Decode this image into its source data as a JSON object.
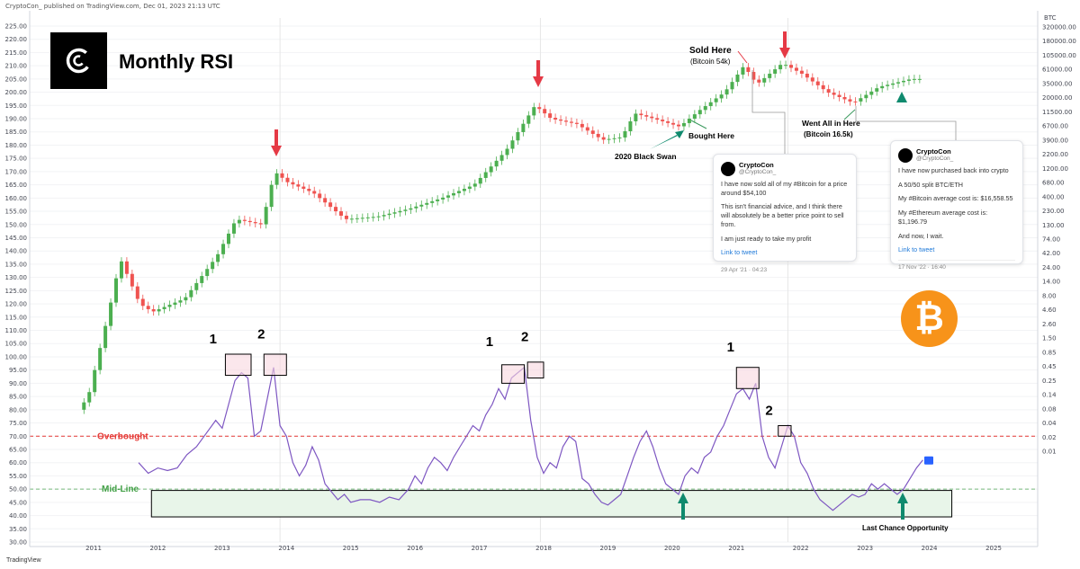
{
  "header": {
    "published": "CryptoCon_ published on TradingView.com, Dec 01, 2023 21:13 UTC"
  },
  "title": "Monthly RSI",
  "footer": {
    "brand": "TradingView"
  },
  "colors": {
    "up": "#26a69a",
    "up_fill": "#4caf50",
    "down": "#ef5350",
    "rsi": "#7e57c2",
    "overbought": "#e53935",
    "midline": "#43a047",
    "zone_fill": "#e8f5e9",
    "box_fill": "#f8d7e0",
    "coin": "#f7931a",
    "arrow_red": "#e53945",
    "arrow_teal": "#0f8a6e"
  },
  "chart_data": {
    "type": "line",
    "title": "Monthly RSI",
    "x_ticks": [
      "2011",
      "2012",
      "2013",
      "2014",
      "2015",
      "2016",
      "2017",
      "2018",
      "2019",
      "2020",
      "2021",
      "2022",
      "2023",
      "2024",
      "2025"
    ],
    "y_left_ticks": [
      "225.00",
      "220.00",
      "215.00",
      "210.00",
      "205.00",
      "200.00",
      "195.00",
      "190.00",
      "185.00",
      "180.00",
      "175.00",
      "170.00",
      "165.00",
      "160.00",
      "155.00",
      "150.00",
      "145.00",
      "140.00",
      "135.00",
      "130.00",
      "125.00",
      "120.00",
      "115.00",
      "110.00",
      "105.00",
      "100.00",
      "95.00",
      "90.00",
      "85.00",
      "80.00",
      "75.00",
      "70.00",
      "65.00",
      "60.00",
      "55.00",
      "50.00",
      "45.00",
      "40.00",
      "35.00",
      "30.00"
    ],
    "y_left_range": [
      30,
      225
    ],
    "y_right_label": "BTC",
    "y_right_ticks": [
      "320000.00",
      "180000.00",
      "105000.00",
      "61000.00",
      "35000.00",
      "20000.00",
      "11500.00",
      "6700.00",
      "3900.00",
      "2200.00",
      "1200.00",
      "680.00",
      "400.00",
      "230.00",
      "130.00",
      "74.00",
      "42.00",
      "24.00",
      "14.00",
      "8.00",
      "4.60",
      "2.60",
      "1.50",
      "0.85",
      "0.45",
      "0.25",
      "0.14",
      "0.08",
      "0.04",
      "0.02",
      "0.01"
    ],
    "levels": {
      "overbought": 70,
      "midline": 50,
      "overbought_label": "Overbought",
      "midline_label": "Mid-Line"
    },
    "rsi": {
      "name": "RSI",
      "x": [
        2011.7,
        2011.85,
        2012.0,
        2012.15,
        2012.3,
        2012.45,
        2012.6,
        2012.75,
        2012.9,
        2013.0,
        2013.1,
        2013.2,
        2013.3,
        2013.4,
        2013.5,
        2013.6,
        2013.7,
        2013.8,
        2013.9,
        2014.0,
        2014.1,
        2014.2,
        2014.3,
        2014.4,
        2014.5,
        2014.6,
        2014.7,
        2014.8,
        2014.9,
        2015.0,
        2015.15,
        2015.3,
        2015.45,
        2015.6,
        2015.75,
        2015.9,
        2016.0,
        2016.1,
        2016.2,
        2016.3,
        2016.4,
        2016.5,
        2016.6,
        2016.7,
        2016.8,
        2016.9,
        2017.0,
        2017.1,
        2017.2,
        2017.3,
        2017.4,
        2017.5,
        2017.6,
        2017.7,
        2017.8,
        2017.9,
        2018.0,
        2018.1,
        2018.2,
        2018.3,
        2018.4,
        2018.5,
        2018.6,
        2018.7,
        2018.8,
        2018.9,
        2019.0,
        2019.1,
        2019.2,
        2019.3,
        2019.4,
        2019.5,
        2019.6,
        2019.7,
        2019.8,
        2019.9,
        2020.0,
        2020.1,
        2020.2,
        2020.3,
        2020.4,
        2020.5,
        2020.6,
        2020.7,
        2020.8,
        2020.9,
        2021.0,
        2021.1,
        2021.2,
        2021.3,
        2021.4,
        2021.5,
        2021.6,
        2021.7,
        2021.8,
        2021.9,
        2022.0,
        2022.1,
        2022.2,
        2022.3,
        2022.4,
        2022.5,
        2022.6,
        2022.7,
        2022.8,
        2022.9,
        2023.0,
        2023.1,
        2023.2,
        2023.3,
        2023.4,
        2023.5,
        2023.6,
        2023.7,
        2023.8,
        2023.9
      ],
      "values": [
        60,
        56,
        58,
        57,
        58,
        63,
        66,
        71,
        76,
        73,
        82,
        91,
        94,
        92,
        70,
        72,
        84,
        96,
        74,
        70,
        60,
        55,
        59,
        66,
        61,
        52,
        49,
        46,
        48,
        45,
        46,
        46,
        45,
        47,
        46,
        50,
        55,
        52,
        58,
        62,
        60,
        57,
        62,
        66,
        70,
        74,
        72,
        78,
        82,
        88,
        84,
        92,
        94,
        96,
        76,
        62,
        56,
        60,
        58,
        66,
        70,
        68,
        54,
        52,
        48,
        45,
        44,
        46,
        48,
        55,
        62,
        68,
        72,
        66,
        58,
        52,
        50,
        48,
        55,
        58,
        56,
        62,
        64,
        70,
        74,
        80,
        86,
        88,
        84,
        90,
        70,
        62,
        58,
        66,
        74,
        70,
        60,
        56,
        50,
        46,
        44,
        42,
        44,
        46,
        48,
        47,
        48,
        52,
        50,
        52,
        50,
        48,
        50,
        54,
        58,
        61
      ]
    },
    "annotations": {
      "cycle_labels": [
        "1",
        "2",
        "1",
        "2",
        "1",
        "2"
      ],
      "sold_here": "Sold Here",
      "sold_price": "(Bitcoin 54k)",
      "bought_here": "Bought Here",
      "black_swan": "2020 Black Swan",
      "went_all_in": "Went All in Here",
      "all_in_price": "(Bitcoin 16.5k)",
      "last_chance": "Last Chance Opportunity"
    }
  },
  "tweets": [
    {
      "name": "CryptoCon",
      "handle": "@CryptoCon_",
      "lines": [
        "I have now sold all of my #Bitcoin for a price around $54,100",
        "This isn't financial advice, and I think there will absolutely be a better price point to sell from.",
        "I am just ready to take my profit"
      ],
      "link": "Link to tweet",
      "date": "29 Apr '21 · 04:23"
    },
    {
      "name": "CryptoCon",
      "handle": "@CryptoCon_",
      "lines": [
        "I have now purchased back into crypto",
        "A 50/50 split BTC/ETH",
        "My #Bitcoin average cost is: $16,558.55",
        "My #Ethereum average cost is: $1,196.79",
        "And now, I wait."
      ],
      "link": "Link to tweet",
      "date": "17 Nov '22 · 16:40"
    }
  ],
  "coin_symbol": "₿"
}
